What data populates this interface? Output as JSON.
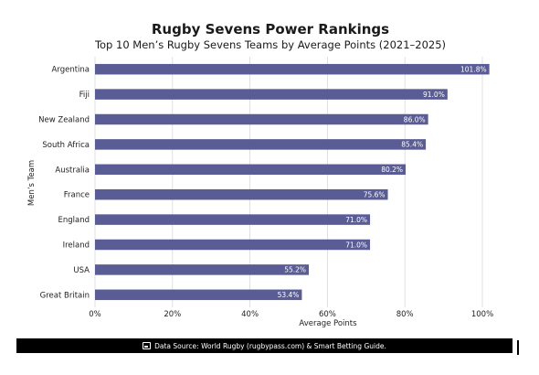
{
  "chart_data": {
    "type": "bar",
    "orientation": "horizontal",
    "title": "Rugby Sevens Power Rankings",
    "subtitle": "Top 10 Men’s Rugby Sevens Teams by Average Points (2021–2025)",
    "xlabel": "Average Points",
    "ylabel": "Men’s Team",
    "xlim": [
      0,
      100
    ],
    "xticks": [
      "0%",
      "20%",
      "40%",
      "60%",
      "80%",
      "100%"
    ],
    "grid": "vertical",
    "bar_color": "#5a5d95",
    "categories": [
      "Argentina",
      "Fiji",
      "New Zealand",
      "South Africa",
      "Australia",
      "France",
      "England",
      "Ireland",
      "USA",
      "Great Britain"
    ],
    "values": [
      101.8,
      91.0,
      86.0,
      85.4,
      80.2,
      75.6,
      71.0,
      71.0,
      55.2,
      53.4
    ],
    "value_labels": [
      "101.8%",
      "91.0%",
      "86.0%",
      "85.4%",
      "80.2%",
      "75.6%",
      "71.0%",
      "71.0%",
      "55.2%",
      "53.4%"
    ]
  },
  "footer": {
    "icon": "chart-icon",
    "text": "Data Source: World Rugby (rugbypass.com) & Smart Betting Guide."
  }
}
